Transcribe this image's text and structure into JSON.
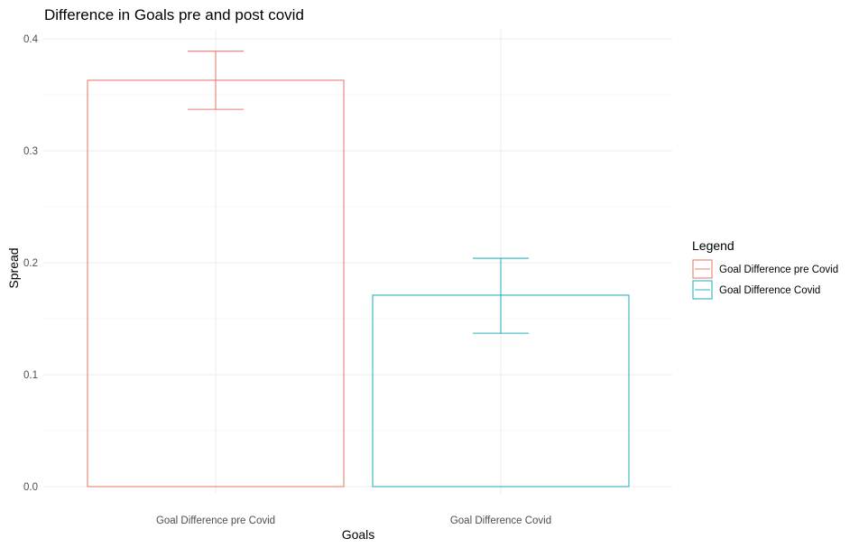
{
  "chart_data": {
    "type": "bar",
    "title": "Difference in Goals pre and post covid",
    "xlabel": "Goals",
    "ylabel": "Spread",
    "categories": [
      "Goal Difference pre Covid",
      "Goal Difference Covid"
    ],
    "values": [
      0.363,
      0.171
    ],
    "error_low": [
      0.337,
      0.137
    ],
    "error_high": [
      0.389,
      0.204
    ],
    "ylim": [
      0,
      0.4
    ],
    "yticks": [
      "0.0",
      "0.1",
      "0.2",
      "0.3",
      "0.4"
    ],
    "grid": true,
    "legend": {
      "title": "Legend",
      "position": "right",
      "entries": [
        "Goal Difference pre Covid",
        "Goal Difference Covid"
      ]
    },
    "colors": [
      "#e87d72",
      "#29b4be"
    ]
  }
}
